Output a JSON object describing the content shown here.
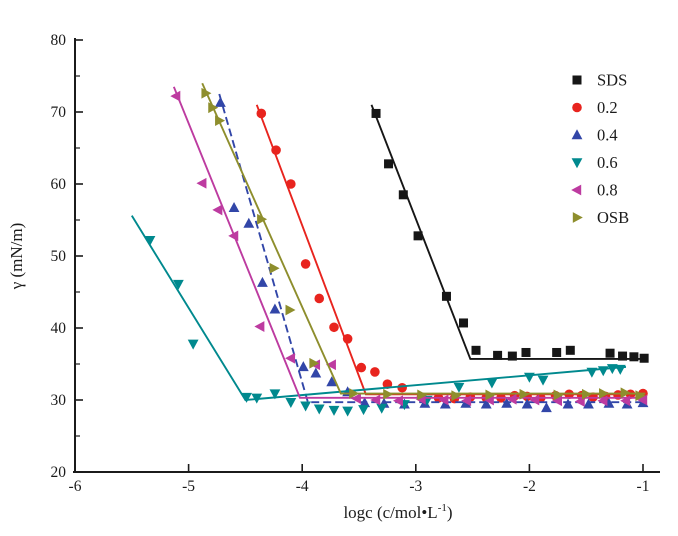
{
  "chart_data": {
    "type": "scatter",
    "title": "",
    "xlabel": {
      "base": "logc (c/mol•L",
      "sup": "-1",
      "close": ")"
    },
    "ylabel": "γ (mN/m)",
    "x_axis": {
      "min": -6,
      "max": -1,
      "major_ticks": [
        -6,
        -5,
        -4,
        -3,
        -2,
        -1
      ]
    },
    "y_axis": {
      "min": 20,
      "max": 80,
      "major_ticks": [
        20,
        30,
        40,
        50,
        60,
        70,
        80
      ],
      "minor_tick_step": 5
    },
    "grid": false,
    "legend": {
      "position": "top-right",
      "items": [
        "SDS",
        "0.2",
        "0.4",
        "0.6",
        "0.8",
        "OSB"
      ]
    },
    "series": [
      {
        "name": "SDS",
        "color": "#161616",
        "marker": "square",
        "line_style": "solid",
        "fit_line": [
          [
            -3.39,
            71.0
          ],
          [
            -2.52,
            35.7
          ],
          [
            -0.97,
            35.7
          ]
        ],
        "points": [
          [
            -3.35,
            69.8
          ],
          [
            -3.24,
            62.8
          ],
          [
            -3.11,
            58.5
          ],
          [
            -2.98,
            52.8
          ],
          [
            -2.73,
            44.4
          ],
          [
            -2.58,
            40.7
          ],
          [
            -2.47,
            36.9
          ],
          [
            -2.28,
            36.2
          ],
          [
            -2.15,
            36.1
          ],
          [
            -2.03,
            36.6
          ],
          [
            -1.76,
            36.6
          ],
          [
            -1.64,
            36.9
          ],
          [
            -1.29,
            36.5
          ],
          [
            -1.18,
            36.1
          ],
          [
            -1.08,
            36.0
          ],
          [
            -0.99,
            35.8
          ]
        ]
      },
      {
        "name": "0.2",
        "color": "#e8241e",
        "marker": "circle",
        "line_style": "solid",
        "fit_line": [
          [
            -4.4,
            71.0
          ],
          [
            -3.44,
            30.8
          ],
          [
            -0.98,
            30.8
          ]
        ],
        "points": [
          [
            -4.36,
            69.8
          ],
          [
            -4.23,
            64.7
          ],
          [
            -4.1,
            60.0
          ],
          [
            -3.97,
            48.9
          ],
          [
            -3.85,
            44.1
          ],
          [
            -3.72,
            40.1
          ],
          [
            -3.6,
            38.5
          ],
          [
            -3.48,
            34.5
          ],
          [
            -3.36,
            33.9
          ],
          [
            -3.25,
            32.2
          ],
          [
            -3.12,
            31.7
          ],
          [
            -2.95,
            30.4
          ],
          [
            -2.8,
            30.3
          ],
          [
            -2.66,
            30.2
          ],
          [
            -2.52,
            30.4
          ],
          [
            -2.38,
            30.3
          ],
          [
            -2.25,
            30.3
          ],
          [
            -2.13,
            30.6
          ],
          [
            -2.02,
            30.5
          ],
          [
            -1.9,
            30.3
          ],
          [
            -1.77,
            30.6
          ],
          [
            -1.65,
            30.8
          ],
          [
            -1.54,
            30.6
          ],
          [
            -1.44,
            30.4
          ],
          [
            -1.33,
            30.5
          ],
          [
            -1.22,
            30.7
          ],
          [
            -1.11,
            30.8
          ],
          [
            -1.0,
            30.9
          ]
        ]
      },
      {
        "name": "0.4",
        "color": "#3246a8",
        "marker": "triangle-up",
        "line_style": "dashed",
        "fit_line": [
          [
            -4.73,
            72.5
          ],
          [
            -3.95,
            29.7
          ],
          [
            -1.0,
            29.7
          ]
        ],
        "points": [
          [
            -4.72,
            71.3
          ],
          [
            -4.6,
            56.7
          ],
          [
            -4.47,
            54.5
          ],
          [
            -4.35,
            46.3
          ],
          [
            -4.24,
            42.6
          ],
          [
            -3.99,
            34.6
          ],
          [
            -3.88,
            33.7
          ],
          [
            -3.74,
            32.5
          ],
          [
            -3.6,
            31.1
          ],
          [
            -3.45,
            29.6
          ],
          [
            -3.28,
            29.5
          ],
          [
            -3.1,
            29.4
          ],
          [
            -2.92,
            29.5
          ],
          [
            -2.74,
            29.4
          ],
          [
            -2.56,
            29.5
          ],
          [
            -2.38,
            29.4
          ],
          [
            -2.2,
            29.5
          ],
          [
            -2.02,
            29.4
          ],
          [
            -1.85,
            28.9
          ],
          [
            -1.66,
            29.4
          ],
          [
            -1.48,
            29.4
          ],
          [
            -1.3,
            29.5
          ],
          [
            -1.14,
            29.4
          ],
          [
            -1.0,
            29.6
          ]
        ]
      },
      {
        "name": "0.6",
        "color": "#00898e",
        "marker": "triangle-down",
        "line_style": "solid",
        "fit_line": [
          [
            -5.5,
            55.6
          ],
          [
            -4.5,
            30.0
          ],
          [
            -1.15,
            34.6
          ]
        ],
        "points": [
          [
            -5.34,
            52.2
          ],
          [
            -5.09,
            46.1
          ],
          [
            -4.96,
            37.8
          ],
          [
            -4.49,
            30.4
          ],
          [
            -4.4,
            30.3
          ],
          [
            -4.24,
            30.9
          ],
          [
            -4.1,
            29.7
          ],
          [
            -3.97,
            29.2
          ],
          [
            -3.85,
            28.8
          ],
          [
            -3.72,
            28.6
          ],
          [
            -3.6,
            28.5
          ],
          [
            -3.46,
            28.7
          ],
          [
            -3.3,
            28.9
          ],
          [
            -3.1,
            29.4
          ],
          [
            -2.9,
            30.0
          ],
          [
            -2.62,
            31.8
          ],
          [
            -2.33,
            32.4
          ],
          [
            -2.0,
            33.2
          ],
          [
            -1.88,
            32.8
          ],
          [
            -1.45,
            33.9
          ],
          [
            -1.35,
            34.1
          ],
          [
            -1.27,
            34.4
          ],
          [
            -1.2,
            34.3
          ]
        ]
      },
      {
        "name": "0.8",
        "color": "#bd3ba0",
        "marker": "triangle-left",
        "line_style": "solid",
        "fit_line": [
          [
            -5.13,
            73.5
          ],
          [
            -4.02,
            30.3
          ],
          [
            -1.0,
            30.3
          ]
        ],
        "points": [
          [
            -5.11,
            72.2
          ],
          [
            -4.88,
            60.1
          ],
          [
            -4.74,
            56.4
          ],
          [
            -4.6,
            52.8
          ],
          [
            -4.37,
            40.2
          ],
          [
            -4.1,
            35.8
          ],
          [
            -3.88,
            34.9
          ],
          [
            -3.74,
            34.9
          ],
          [
            -3.52,
            30.2
          ],
          [
            -3.35,
            30.0
          ],
          [
            -3.15,
            29.9
          ],
          [
            -2.95,
            30.1
          ],
          [
            -2.75,
            30.0
          ],
          [
            -2.55,
            29.9
          ],
          [
            -2.35,
            30.0
          ],
          [
            -2.15,
            30.1
          ],
          [
            -1.95,
            30.0
          ],
          [
            -1.75,
            29.9
          ],
          [
            -1.55,
            29.8
          ],
          [
            -1.35,
            29.9
          ],
          [
            -1.15,
            29.9
          ],
          [
            -1.0,
            30.0
          ]
        ]
      },
      {
        "name": "OSB",
        "color": "#8e8e2d",
        "marker": "triangle-right",
        "line_style": "solid",
        "fit_line": [
          [
            -4.88,
            74.0
          ],
          [
            -3.66,
            30.9
          ],
          [
            -0.98,
            30.9
          ]
        ],
        "points": [
          [
            -4.85,
            72.6
          ],
          [
            -4.79,
            70.6
          ],
          [
            -4.73,
            68.8
          ],
          [
            -4.36,
            55.1
          ],
          [
            -4.25,
            48.3
          ],
          [
            -4.11,
            42.5
          ],
          [
            -3.9,
            35.1
          ],
          [
            -3.55,
            30.9
          ],
          [
            -3.25,
            30.8
          ],
          [
            -2.95,
            30.7
          ],
          [
            -2.65,
            30.6
          ],
          [
            -2.35,
            30.7
          ],
          [
            -2.05,
            30.8
          ],
          [
            -1.75,
            30.7
          ],
          [
            -1.5,
            30.8
          ],
          [
            -1.35,
            30.9
          ],
          [
            -1.16,
            31.0
          ],
          [
            -1.03,
            30.6
          ]
        ]
      }
    ]
  }
}
